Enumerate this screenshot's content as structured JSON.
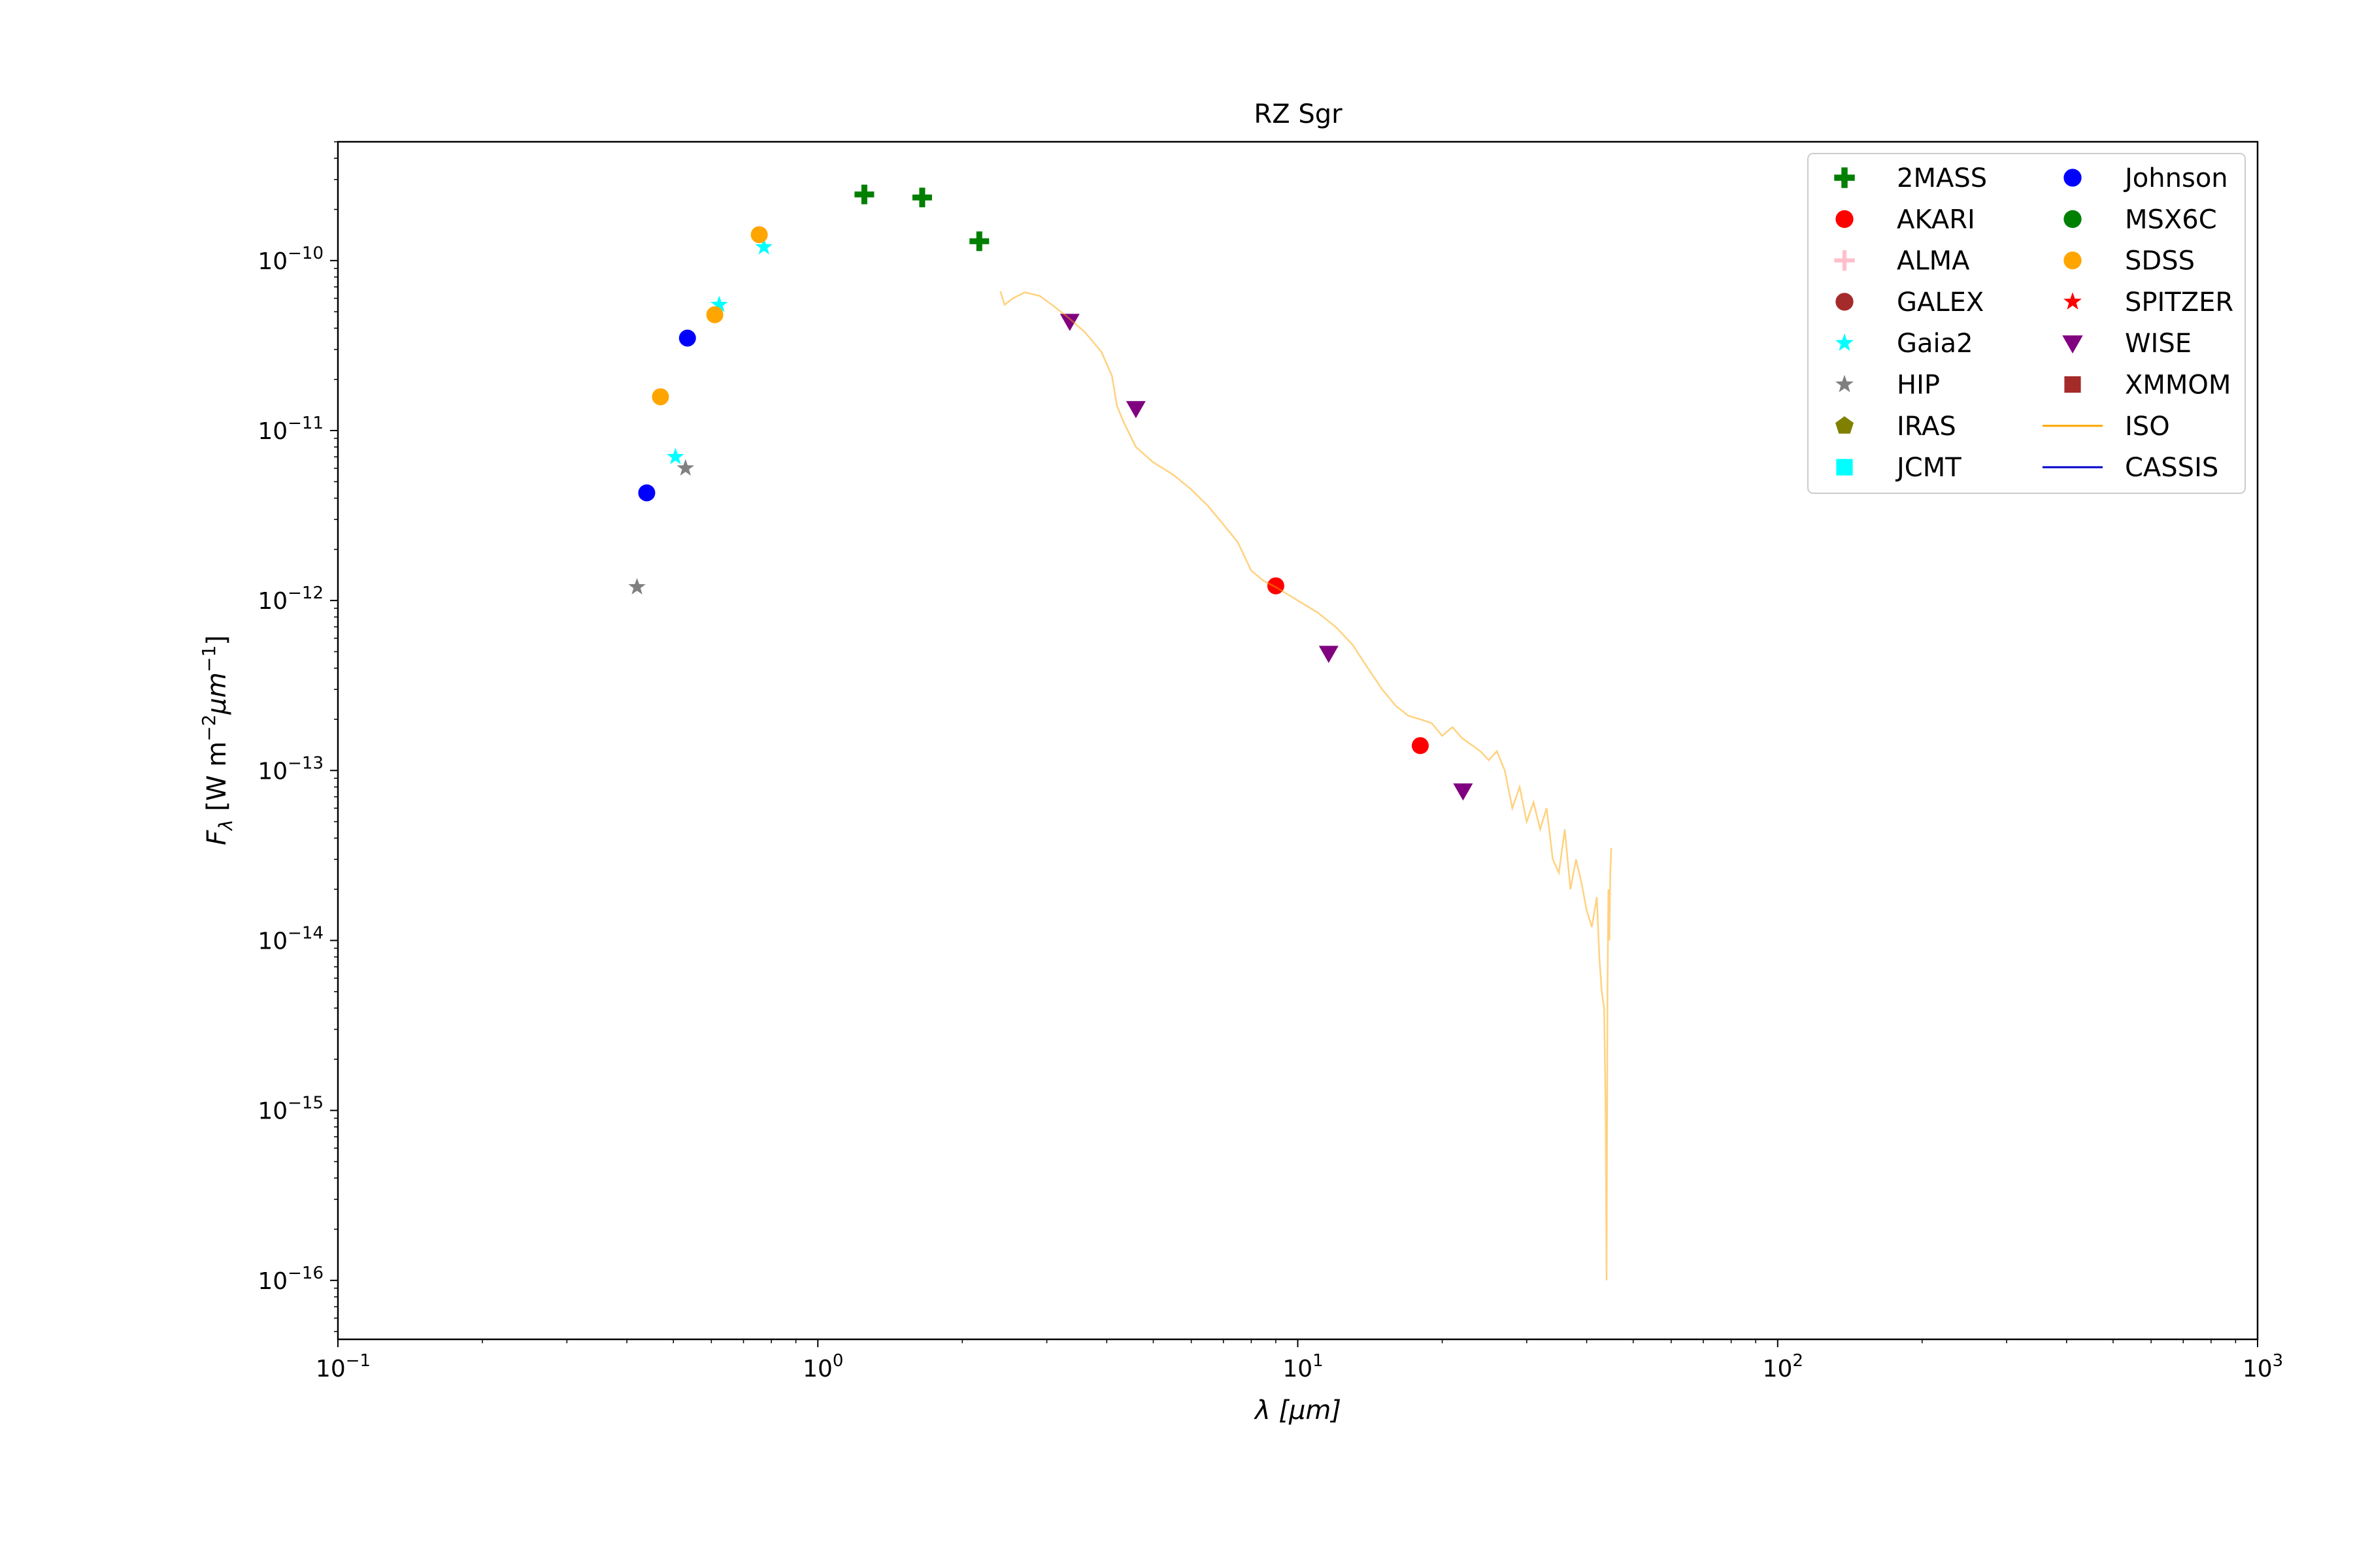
{
  "chart_data": {
    "type": "scatter",
    "title": "RZ Sgr",
    "xlabel": "λ [μm]",
    "ylabel": "F_λ [W m⁻² μm⁻¹]",
    "xscale": "log",
    "yscale": "log",
    "xlim": [
      0.1,
      1000
    ],
    "ylim": [
      4.5e-17,
      5e-10
    ],
    "x_ticks": [
      0.1,
      1,
      10,
      100,
      1000
    ],
    "x_tick_labels": [
      [
        "10",
        "−1"
      ],
      [
        "10",
        "0"
      ],
      [
        "10",
        "1"
      ],
      [
        "10",
        "2"
      ],
      [
        "10",
        "3"
      ]
    ],
    "y_ticks": [
      1e-16,
      1e-15,
      1e-14,
      1e-13,
      1e-12,
      1e-11,
      1e-10
    ],
    "y_tick_labels": [
      [
        "10",
        "−16"
      ],
      [
        "10",
        "−15"
      ],
      [
        "10",
        "−14"
      ],
      [
        "10",
        "−13"
      ],
      [
        "10",
        "−12"
      ],
      [
        "10",
        "−11"
      ],
      [
        "10",
        "−10"
      ]
    ],
    "grid": false,
    "legend_position": "top-right",
    "series": [
      {
        "name": "2MASS",
        "marker": "plus",
        "color": "#007f00",
        "points": [
          [
            1.25,
            2.45e-10
          ],
          [
            1.65,
            2.35e-10
          ],
          [
            2.17,
            1.3e-10
          ]
        ]
      },
      {
        "name": "AKARI",
        "marker": "circle",
        "color": "#ff0000",
        "points": [
          [
            9.0,
            1.22e-12
          ],
          [
            18.0,
            1.4e-13
          ]
        ]
      },
      {
        "name": "ALMA",
        "marker": "plus-thin",
        "color": "#ffc0cb",
        "points": []
      },
      {
        "name": "GALEX",
        "marker": "circle",
        "color": "#a52a2a",
        "points": []
      },
      {
        "name": "Gaia2",
        "marker": "star",
        "color": "#00ffff",
        "points": [
          [
            0.505,
            7e-12
          ],
          [
            0.623,
            5.5e-11
          ],
          [
            0.772,
            1.2e-10
          ]
        ]
      },
      {
        "name": "HIP",
        "marker": "star",
        "color": "#808080",
        "points": [
          [
            0.42,
            1.2e-12
          ],
          [
            0.53,
            6e-12
          ]
        ]
      },
      {
        "name": "IRAS",
        "marker": "pentagon",
        "color": "#808000",
        "points": []
      },
      {
        "name": "JCMT",
        "marker": "square",
        "color": "#00ffff",
        "points": []
      },
      {
        "name": "Johnson",
        "marker": "circle",
        "color": "#0000ff",
        "points": [
          [
            0.44,
            4.3e-12
          ],
          [
            0.535,
            3.5e-11
          ]
        ]
      },
      {
        "name": "MSX6C",
        "marker": "circle",
        "color": "#008000",
        "points": []
      },
      {
        "name": "SDSS",
        "marker": "circle",
        "color": "#ffa500",
        "points": [
          [
            0.47,
            1.58e-11
          ],
          [
            0.61,
            4.8e-11
          ],
          [
            0.755,
            1.42e-10
          ]
        ]
      },
      {
        "name": "SPITZER",
        "marker": "star",
        "color": "#ff0000",
        "points": []
      },
      {
        "name": "WISE",
        "marker": "triangle-down",
        "color": "#800080",
        "points": [
          [
            3.35,
            4.4e-11
          ],
          [
            4.6,
            1.35e-11
          ],
          [
            11.6,
            4.9e-13
          ],
          [
            22.1,
            7.6e-14
          ]
        ]
      },
      {
        "name": "XMMOM",
        "marker": "square",
        "color": "#a52a2a",
        "points": []
      },
      {
        "name": "ISO",
        "marker": "line",
        "color": "#ffa500",
        "opacity": 0.5,
        "points": [
          [
            2.4,
            6.6e-11
          ],
          [
            2.45,
            5.5e-11
          ],
          [
            2.55,
            6e-11
          ],
          [
            2.7,
            6.5e-11
          ],
          [
            2.9,
            6.2e-11
          ],
          [
            3.1,
            5.4e-11
          ],
          [
            3.3,
            4.7e-11
          ],
          [
            3.6,
            3.8e-11
          ],
          [
            3.9,
            2.9e-11
          ],
          [
            4.1,
            2.1e-11
          ],
          [
            4.2,
            1.4e-11
          ],
          [
            4.35,
            1.1e-11
          ],
          [
            4.6,
            8e-12
          ],
          [
            5.0,
            6.5e-12
          ],
          [
            5.5,
            5.5e-12
          ],
          [
            6.0,
            4.5e-12
          ],
          [
            6.5,
            3.6e-12
          ],
          [
            7.0,
            2.8e-12
          ],
          [
            7.5,
            2.2e-12
          ],
          [
            8.0,
            1.5e-12
          ],
          [
            8.5,
            1.3e-12
          ],
          [
            9.0,
            1.2e-12
          ],
          [
            10.0,
            1e-12
          ],
          [
            11.0,
            8.5e-13
          ],
          [
            12.0,
            7e-13
          ],
          [
            13.0,
            5.5e-13
          ],
          [
            14.0,
            4e-13
          ],
          [
            15.0,
            3e-13
          ],
          [
            16.0,
            2.4e-13
          ],
          [
            17.0,
            2.1e-13
          ],
          [
            18.0,
            2e-13
          ],
          [
            19.0,
            1.9e-13
          ],
          [
            20.0,
            1.6e-13
          ],
          [
            21.0,
            1.8e-13
          ],
          [
            22.0,
            1.55e-13
          ],
          [
            24.0,
            1.3e-13
          ],
          [
            25.0,
            1.15e-13
          ],
          [
            26.0,
            1.3e-13
          ],
          [
            27.0,
            1e-13
          ],
          [
            28.0,
            6e-14
          ],
          [
            29.0,
            8e-14
          ],
          [
            30.0,
            5e-14
          ],
          [
            31.0,
            6.5e-14
          ],
          [
            32.0,
            4.5e-14
          ],
          [
            33.0,
            6e-14
          ],
          [
            34.0,
            3e-14
          ],
          [
            35.0,
            2.5e-14
          ],
          [
            36.0,
            4.5e-14
          ],
          [
            37.0,
            2e-14
          ],
          [
            38.0,
            3e-14
          ],
          [
            39.0,
            2.2e-14
          ],
          [
            40.0,
            1.5e-14
          ],
          [
            41.0,
            1.2e-14
          ],
          [
            42.0,
            1.8e-14
          ],
          [
            42.5,
            8e-15
          ],
          [
            43.0,
            5e-15
          ],
          [
            43.5,
            4e-15
          ],
          [
            43.8,
            1e-15
          ],
          [
            44.0,
            1e-16
          ],
          [
            44.2,
            5e-15
          ],
          [
            44.4,
            2e-14
          ],
          [
            44.6,
            1e-14
          ],
          [
            44.8,
            2.5e-14
          ],
          [
            45.0,
            3.5e-14
          ]
        ]
      },
      {
        "name": "CASSIS",
        "marker": "line",
        "color": "#0000cd",
        "points": []
      }
    ]
  }
}
